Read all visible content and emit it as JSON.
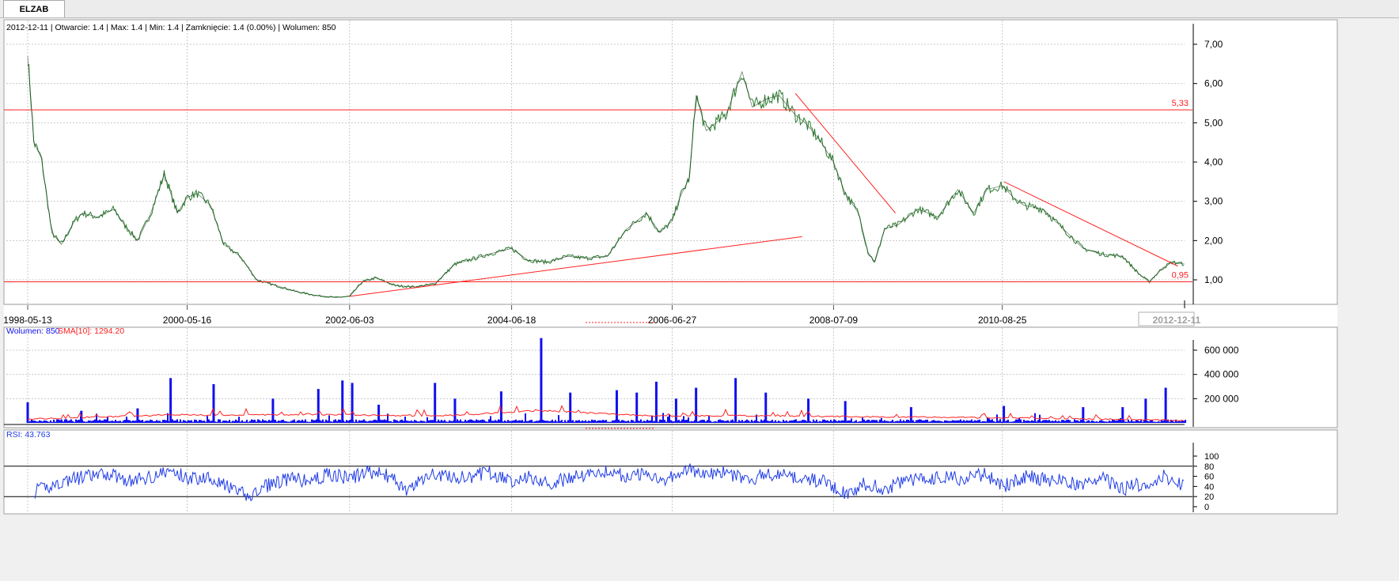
{
  "tab": {
    "label": "ELZAB"
  },
  "info_line": "2012-12-11 | Otwarcie: 1.4 | Max: 1.4 | Min: 1.4 | Zamknięcie: 1.4 (0.00%) | Wolumen: 850",
  "colors": {
    "price": "#2e7d32",
    "line": "#ff2020",
    "volume": "#1010ee",
    "sma": "#ff2020",
    "rsi": "#1f3ce6",
    "grid": "#c8c8c8",
    "axis": "#000000"
  },
  "chart_data": [
    {
      "type": "line",
      "title": "2012-12-11 | Otwarcie: 1.4 | Max: 1.4 | Min: 1.4 | Zamknięcie: 1.4 (0.00%) | Wolumen: 850",
      "xlabels": [
        "1998-05-13",
        "2000-05-16",
        "2002-06-03",
        "2004-06-18",
        "2006-06-27",
        "2008-07-09",
        "2010-08-25",
        "2012-12-11"
      ],
      "ylim": [
        0.3,
        7.3
      ],
      "yticks": [
        "1,00",
        "2,00",
        "3,00",
        "4,00",
        "5,00",
        "6,00",
        "7,00"
      ],
      "grid": true,
      "series": [
        {
          "x": [
            "1998-05-13",
            "1998-06-01",
            "1998-06-10",
            "1998-07-15",
            "1998-09-01",
            "1998-10-15",
            "1998-12-15",
            "1999-01-20",
            "1999-04-01",
            "1999-06-15",
            "1999-08-01",
            "1999-10-01",
            "1999-12-01",
            "2000-02-01",
            "2000-04-01",
            "2000-05-16",
            "2000-07-01",
            "2000-09-01",
            "2000-11-01",
            "2001-01-15",
            "2001-04-01",
            "2001-07-01",
            "2001-10-01",
            "2002-01-01",
            "2002-04-01",
            "2002-06-03",
            "2002-08-01",
            "2002-10-01",
            "2003-01-01",
            "2003-04-01",
            "2003-07-01",
            "2003-10-01",
            "2004-01-01",
            "2004-03-01",
            "2004-06-18",
            "2004-09-01",
            "2004-12-01",
            "2005-03-01",
            "2005-06-01",
            "2005-09-01",
            "2005-12-01",
            "2006-03-01",
            "2006-05-01",
            "2006-06-27",
            "2006-08-01",
            "2006-09-15",
            "2006-10-15",
            "2006-12-01",
            "2007-03-01",
            "2007-05-15",
            "2007-07-01",
            "2007-09-01",
            "2007-11-01",
            "2008-01-15",
            "2008-03-01",
            "2008-05-01",
            "2008-07-09",
            "2008-09-01",
            "2008-11-01",
            "2008-12-15",
            "2009-01-15",
            "2009-03-01",
            "2009-05-01",
            "2009-08-01",
            "2009-11-01",
            "2010-02-01",
            "2010-04-15",
            "2010-06-15",
            "2010-08-25",
            "2010-10-15",
            "2010-12-01",
            "2011-03-01",
            "2011-06-01",
            "2011-09-01",
            "2011-12-01",
            "2012-03-01",
            "2012-05-15",
            "2012-07-01",
            "2012-09-01",
            "2012-10-15",
            "2012-12-11"
          ],
          "y": [
            6.7,
            5.3,
            4.5,
            4.1,
            2.2,
            1.9,
            2.5,
            2.7,
            2.6,
            2.8,
            2.4,
            2.0,
            2.7,
            3.7,
            2.7,
            3.1,
            3.2,
            2.9,
            1.9,
            1.6,
            1.0,
            0.85,
            0.7,
            0.6,
            0.55,
            0.58,
            0.95,
            1.05,
            0.85,
            0.82,
            0.9,
            1.4,
            1.55,
            1.65,
            1.8,
            1.5,
            1.45,
            1.6,
            1.55,
            1.6,
            2.3,
            2.7,
            2.2,
            2.5,
            3.1,
            3.6,
            5.7,
            4.8,
            5.2,
            6.3,
            5.4,
            5.6,
            5.7,
            5.2,
            5.0,
            4.6,
            4.0,
            3.2,
            2.7,
            1.7,
            1.45,
            2.3,
            2.4,
            2.8,
            2.6,
            3.3,
            2.7,
            3.3,
            3.4,
            3.1,
            2.9,
            2.8,
            2.3,
            1.8,
            1.65,
            1.6,
            1.15,
            0.95,
            1.3,
            1.45,
            1.4
          ]
        }
      ],
      "hlines": [
        {
          "value": 5.33,
          "label": "5,33"
        },
        {
          "value": 0.95,
          "label": "0,95"
        }
      ],
      "trendlines": [
        {
          "x": [
            "2002-06-03",
            "2008-02-15"
          ],
          "y": [
            0.58,
            2.1
          ]
        },
        {
          "x": [
            "2008-01-15",
            "2009-04-20"
          ],
          "y": [
            5.75,
            2.7
          ]
        },
        {
          "x": [
            "2010-09-01",
            "2012-11-10"
          ],
          "y": [
            3.5,
            1.35
          ]
        }
      ],
      "last_label": "2012-12-11"
    },
    {
      "type": "bar",
      "title": "Wolumen: 850",
      "sma_label": "SMA[10]: 1294.20",
      "ylim": [
        0,
        700000
      ],
      "yticks": [
        "200 000",
        "400 000",
        "600 000"
      ],
      "series": [
        {
          "name": "Wolumen",
          "x": [
            "1998-05-13",
            "1999-01-15",
            "1999-10-01",
            "2000-03-01",
            "2000-09-15",
            "2001-06-15",
            "2002-01-10",
            "2002-05-01",
            "2002-06-15",
            "2002-10-15",
            "2003-07-01",
            "2003-10-01",
            "2004-05-01",
            "2004-11-01",
            "2005-03-15",
            "2005-10-15",
            "2006-01-15",
            "2006-04-15",
            "2006-07-15",
            "2006-10-15",
            "2007-04-15",
            "2007-09-01",
            "2008-03-15",
            "2008-09-01",
            "2009-07-01",
            "2010-09-01",
            "2011-09-01",
            "2012-03-01",
            "2012-06-15",
            "2012-09-15",
            "2012-12-11"
          ],
          "values": [
            170000,
            100000,
            120000,
            370000,
            320000,
            200000,
            280000,
            350000,
            330000,
            150000,
            330000,
            200000,
            260000,
            700000,
            250000,
            270000,
            250000,
            340000,
            200000,
            290000,
            370000,
            250000,
            200000,
            180000,
            130000,
            140000,
            130000,
            130000,
            200000,
            290000,
            850
          ]
        },
        {
          "name": "SMA[10]",
          "x": [
            "1998-05-13",
            "2000-03-01",
            "2000-09-15",
            "2002-01-10",
            "2003-07-01",
            "2004-11-01",
            "2006-04-15",
            "2007-04-15",
            "2010-09-01",
            "2012-12-11"
          ],
          "values": [
            30000,
            130000,
            120000,
            140000,
            100000,
            230000,
            100000,
            110000,
            60000,
            1294.2
          ]
        }
      ]
    },
    {
      "type": "line",
      "title": "RSI: 43.763",
      "ylim": [
        0,
        100
      ],
      "yticks": [
        "0",
        "20",
        "40",
        "60",
        "80",
        "100"
      ],
      "hlines": [
        {
          "value": 80
        },
        {
          "value": 20
        }
      ],
      "series": [
        {
          "name": "RSI",
          "x": [
            "1998-06-15",
            "1998-12-01",
            "1999-03-01",
            "1999-06-01",
            "1999-09-01",
            "1999-12-01",
            "2000-03-01",
            "2000-06-01",
            "2000-09-01",
            "2000-12-01",
            "2001-03-01",
            "2001-06-01",
            "2001-09-01",
            "2001-12-01",
            "2002-03-01",
            "2002-06-01",
            "2002-09-01",
            "2002-12-01",
            "2003-03-01",
            "2003-06-01",
            "2003-09-01",
            "2003-12-01",
            "2004-03-01",
            "2004-06-01",
            "2004-09-01",
            "2004-12-01",
            "2005-03-01",
            "2005-06-01",
            "2005-09-01",
            "2005-12-01",
            "2006-03-01",
            "2006-06-01",
            "2006-09-01",
            "2006-12-01",
            "2007-03-01",
            "2007-06-01",
            "2007-09-01",
            "2007-12-01",
            "2008-03-01",
            "2008-06-01",
            "2008-09-01",
            "2008-12-01",
            "2009-03-01",
            "2009-06-01",
            "2009-09-01",
            "2009-12-01",
            "2010-03-01",
            "2010-06-01",
            "2010-09-01",
            "2010-12-01",
            "2011-03-01",
            "2011-06-01",
            "2011-09-01",
            "2011-12-01",
            "2012-03-01",
            "2012-06-01",
            "2012-09-01",
            "2012-12-11"
          ],
          "values": [
            30,
            55,
            60,
            65,
            50,
            60,
            70,
            55,
            60,
            35,
            20,
            45,
            55,
            50,
            65,
            55,
            70,
            60,
            30,
            65,
            60,
            55,
            70,
            50,
            60,
            45,
            55,
            65,
            70,
            60,
            65,
            55,
            75,
            60,
            70,
            50,
            65,
            60,
            55,
            50,
            25,
            45,
            35,
            50,
            55,
            60,
            55,
            65,
            40,
            60,
            55,
            50,
            45,
            55,
            35,
            45,
            60,
            43.763
          ]
        }
      ]
    }
  ]
}
